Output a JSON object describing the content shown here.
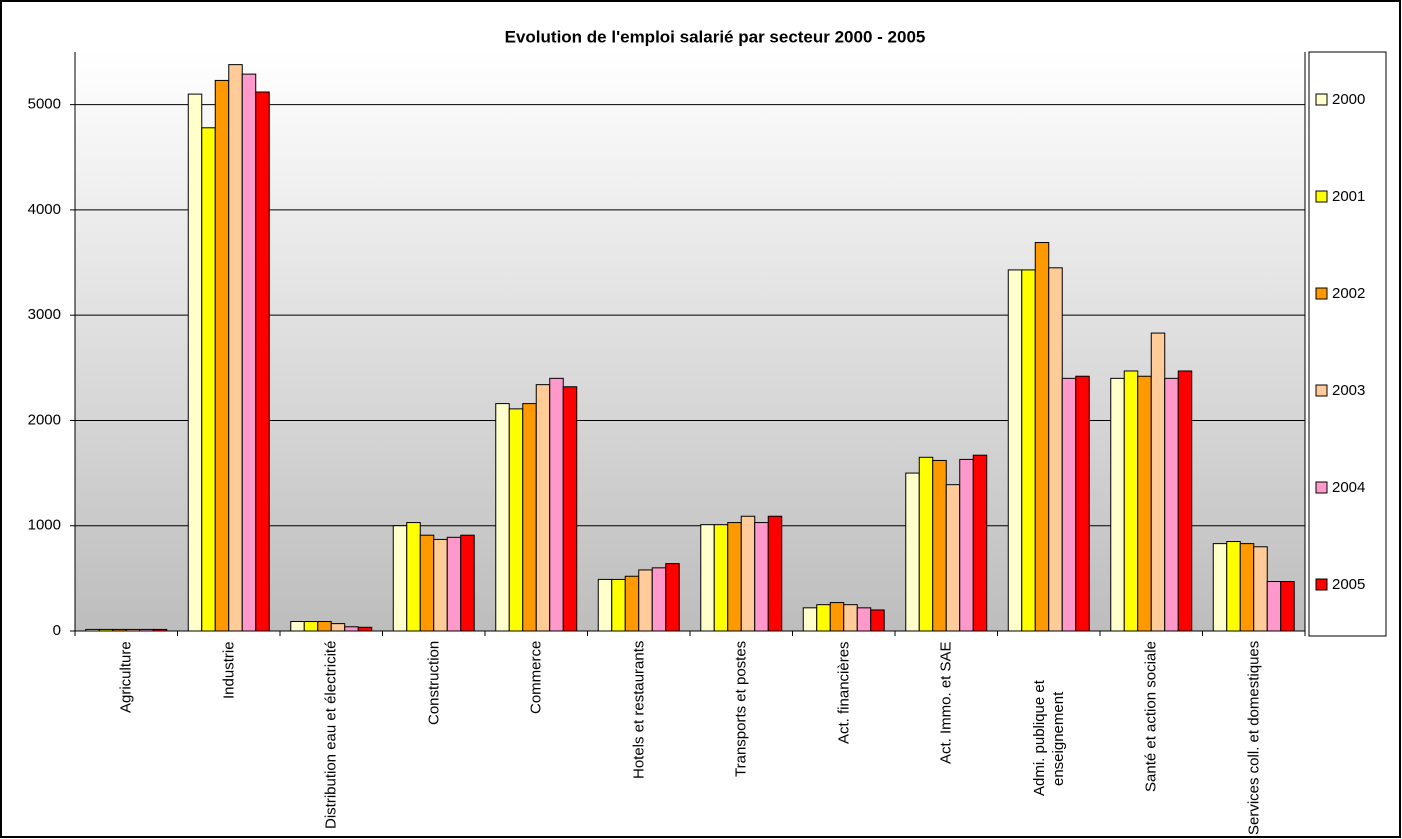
{
  "chart_data": {
    "type": "bar",
    "title": "Evolution de l'emploi salarié par secteur 2000 - 2005",
    "categories": [
      "Agriculture",
      "Industrie",
      "Distribution eau et électricité",
      "Construction",
      "Commerce",
      "Hotels et restaurants",
      "Transports et postes",
      "Act. financières",
      "Act. Immo. et SAE",
      "Admi. publique et enseignement",
      "Santé et action sociale",
      "Services coll. et domestiques"
    ],
    "series": [
      {
        "name": "2000",
        "color": "#FFFFCC",
        "values": [
          15,
          5100,
          90,
          1000,
          2160,
          490,
          1010,
          220,
          1500,
          3430,
          2400,
          830
        ]
      },
      {
        "name": "2001",
        "color": "#FFFF00",
        "values": [
          15,
          4780,
          90,
          1030,
          2110,
          490,
          1010,
          250,
          1650,
          3430,
          2470,
          850
        ]
      },
      {
        "name": "2002",
        "color": "#FF9900",
        "values": [
          15,
          5230,
          90,
          910,
          2160,
          520,
          1030,
          270,
          1620,
          3690,
          2420,
          830
        ]
      },
      {
        "name": "2003",
        "color": "#FFCC99",
        "values": [
          15,
          5380,
          70,
          870,
          2340,
          580,
          1090,
          250,
          1390,
          3450,
          2830,
          800
        ]
      },
      {
        "name": "2004",
        "color": "#FF99CC",
        "values": [
          15,
          5290,
          40,
          890,
          2400,
          600,
          1030,
          220,
          1630,
          2400,
          2400,
          470
        ]
      },
      {
        "name": "2005",
        "color": "#FF0000",
        "values": [
          15,
          5120,
          35,
          910,
          2320,
          640,
          1090,
          200,
          1670,
          2420,
          2470,
          470
        ]
      }
    ],
    "ylim": [
      0,
      5500
    ],
    "yticks": [
      0,
      1000,
      2000,
      3000,
      4000,
      5000
    ],
    "grid": true,
    "legend": "right"
  }
}
